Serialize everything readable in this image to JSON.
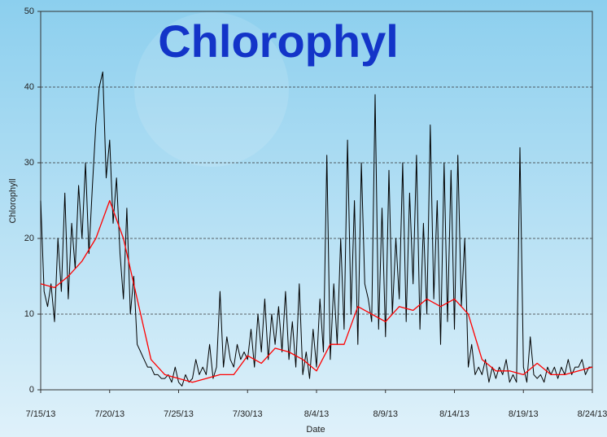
{
  "chart_data": {
    "type": "line",
    "title": "Chlorophyl",
    "x_label": "Date",
    "y_label": "Chlorophyll",
    "xlim": [
      "2013-07-15T00",
      "2013-08-24T00"
    ],
    "xticks": [
      {
        "value": "2013-07-15T00",
        "label": "7/15/13"
      },
      {
        "value": "2013-07-20T00",
        "label": "7/20/13"
      },
      {
        "value": "2013-07-25T00",
        "label": "7/25/13"
      },
      {
        "value": "2013-07-30T00",
        "label": "7/30/13"
      },
      {
        "value": "2013-08-04T00",
        "label": "8/4/13"
      },
      {
        "value": "2013-08-09T00",
        "label": "8/9/13"
      },
      {
        "value": "2013-08-14T00",
        "label": "8/14/13"
      },
      {
        "value": "2013-08-19T00",
        "label": "8/19/13"
      },
      {
        "value": "2013-08-24T00",
        "label": "8/24/13"
      }
    ],
    "ylim": [
      0,
      50
    ],
    "yticks": [
      0,
      10,
      20,
      30,
      40,
      50
    ],
    "grid": true,
    "series": [
      {
        "color": "#000000",
        "x": [
          "2013-07-15T00",
          "2013-07-15T06",
          "2013-07-15T12",
          "2013-07-15T18",
          "2013-07-16T00",
          "2013-07-16T06",
          "2013-07-16T12",
          "2013-07-16T18",
          "2013-07-17T00",
          "2013-07-17T06",
          "2013-07-17T12",
          "2013-07-17T18",
          "2013-07-18T00",
          "2013-07-18T06",
          "2013-07-18T12",
          "2013-07-18T18",
          "2013-07-19T00",
          "2013-07-19T06",
          "2013-07-19T12",
          "2013-07-19T18",
          "2013-07-20T00",
          "2013-07-20T06",
          "2013-07-20T12",
          "2013-07-20T18",
          "2013-07-21T00",
          "2013-07-21T06",
          "2013-07-21T12",
          "2013-07-21T18",
          "2013-07-22T00",
          "2013-07-22T06",
          "2013-07-22T12",
          "2013-07-22T18",
          "2013-07-23T00",
          "2013-07-23T06",
          "2013-07-23T12",
          "2013-07-23T18",
          "2013-07-24T00",
          "2013-07-24T06",
          "2013-07-24T12",
          "2013-07-24T18",
          "2013-07-25T00",
          "2013-07-25T06",
          "2013-07-25T12",
          "2013-07-25T18",
          "2013-07-26T00",
          "2013-07-26T06",
          "2013-07-26T12",
          "2013-07-26T18",
          "2013-07-27T00",
          "2013-07-27T06",
          "2013-07-27T12",
          "2013-07-27T18",
          "2013-07-28T00",
          "2013-07-28T06",
          "2013-07-28T12",
          "2013-07-28T18",
          "2013-07-29T00",
          "2013-07-29T06",
          "2013-07-29T12",
          "2013-07-29T18",
          "2013-07-30T00",
          "2013-07-30T06",
          "2013-07-30T12",
          "2013-07-30T18",
          "2013-07-31T00",
          "2013-07-31T06",
          "2013-07-31T12",
          "2013-07-31T18",
          "2013-08-01T00",
          "2013-08-01T06",
          "2013-08-01T12",
          "2013-08-01T18",
          "2013-08-02T00",
          "2013-08-02T06",
          "2013-08-02T12",
          "2013-08-02T18",
          "2013-08-03T00",
          "2013-08-03T06",
          "2013-08-03T12",
          "2013-08-03T18",
          "2013-08-04T00",
          "2013-08-04T06",
          "2013-08-04T12",
          "2013-08-04T18",
          "2013-08-05T00",
          "2013-08-05T06",
          "2013-08-05T12",
          "2013-08-05T18",
          "2013-08-06T00",
          "2013-08-06T06",
          "2013-08-06T12",
          "2013-08-06T18",
          "2013-08-07T00",
          "2013-08-07T06",
          "2013-08-07T12",
          "2013-08-07T18",
          "2013-08-08T00",
          "2013-08-08T06",
          "2013-08-08T12",
          "2013-08-08T18",
          "2013-08-09T00",
          "2013-08-09T06",
          "2013-08-09T12",
          "2013-08-09T18",
          "2013-08-10T00",
          "2013-08-10T06",
          "2013-08-10T12",
          "2013-08-10T18",
          "2013-08-11T00",
          "2013-08-11T06",
          "2013-08-11T12",
          "2013-08-11T18",
          "2013-08-12T00",
          "2013-08-12T06",
          "2013-08-12T12",
          "2013-08-12T18",
          "2013-08-13T00",
          "2013-08-13T06",
          "2013-08-13T12",
          "2013-08-13T18",
          "2013-08-14T00",
          "2013-08-14T06",
          "2013-08-14T12",
          "2013-08-14T18",
          "2013-08-15T00",
          "2013-08-15T06",
          "2013-08-15T12",
          "2013-08-15T18",
          "2013-08-16T00",
          "2013-08-16T06",
          "2013-08-16T12",
          "2013-08-16T18",
          "2013-08-17T00",
          "2013-08-17T06",
          "2013-08-17T12",
          "2013-08-17T18",
          "2013-08-18T00",
          "2013-08-18T06",
          "2013-08-18T12",
          "2013-08-18T18",
          "2013-08-19T00",
          "2013-08-19T06",
          "2013-08-19T12",
          "2013-08-19T18",
          "2013-08-20T00",
          "2013-08-20T06",
          "2013-08-20T12",
          "2013-08-20T18",
          "2013-08-21T00",
          "2013-08-21T06",
          "2013-08-21T12",
          "2013-08-21T18",
          "2013-08-22T00",
          "2013-08-22T06",
          "2013-08-22T12",
          "2013-08-22T18",
          "2013-08-23T00",
          "2013-08-23T06",
          "2013-08-23T12",
          "2013-08-23T18",
          "2013-08-24T00"
        ],
        "values": [
          25,
          13,
          11,
          14,
          9,
          20,
          13,
          26,
          12,
          22,
          16,
          27,
          20,
          30,
          18,
          27,
          35,
          40,
          42,
          28,
          33,
          22,
          28,
          18,
          12,
          24,
          10,
          15,
          6,
          5,
          4,
          3,
          3,
          2,
          2,
          1.5,
          1.5,
          2,
          1,
          3,
          1,
          0.5,
          2,
          1,
          1.5,
          4,
          2,
          3,
          2,
          6,
          1.5,
          3,
          13,
          3,
          7,
          4,
          3,
          6,
          4,
          5,
          4,
          8,
          3,
          10,
          5,
          12,
          4,
          10,
          6,
          11,
          5,
          13,
          4,
          9,
          3,
          14,
          2,
          5,
          1.5,
          8,
          3,
          12,
          5,
          31,
          4,
          14,
          6,
          20,
          8,
          33,
          10,
          25,
          6,
          30,
          14,
          12,
          9,
          39,
          8,
          24,
          7,
          29,
          10,
          20,
          12,
          30,
          9,
          26,
          14,
          31,
          8,
          22,
          10,
          35,
          12,
          25,
          6,
          30,
          9,
          29,
          8,
          31,
          11,
          20,
          3,
          6,
          2,
          3,
          2,
          4,
          1,
          3,
          1.5,
          3,
          2,
          4,
          1,
          2,
          1,
          32,
          3,
          1,
          7,
          2,
          1.5,
          2,
          1,
          3,
          2,
          3,
          1.5,
          3,
          2,
          4,
          2,
          3,
          3,
          4,
          2,
          3,
          3
        ]
      },
      {
        "color": "#ff0000",
        "x": [
          "2013-07-15T00",
          "2013-07-16T00",
          "2013-07-17T00",
          "2013-07-18T00",
          "2013-07-19T00",
          "2013-07-20T00",
          "2013-07-21T00",
          "2013-07-22T00",
          "2013-07-23T00",
          "2013-07-24T00",
          "2013-07-25T00",
          "2013-07-26T00",
          "2013-07-27T00",
          "2013-07-28T00",
          "2013-07-29T00",
          "2013-07-30T00",
          "2013-07-31T00",
          "2013-08-01T00",
          "2013-08-02T00",
          "2013-08-03T00",
          "2013-08-04T00",
          "2013-08-05T00",
          "2013-08-06T00",
          "2013-08-07T00",
          "2013-08-08T00",
          "2013-08-09T00",
          "2013-08-10T00",
          "2013-08-11T00",
          "2013-08-12T00",
          "2013-08-13T00",
          "2013-08-14T00",
          "2013-08-15T00",
          "2013-08-16T00",
          "2013-08-17T00",
          "2013-08-18T00",
          "2013-08-19T00",
          "2013-08-20T00",
          "2013-08-21T00",
          "2013-08-22T00",
          "2013-08-23T00",
          "2013-08-24T00"
        ],
        "values": [
          14,
          13.5,
          15,
          17,
          20,
          25,
          20,
          12,
          4,
          2,
          1.5,
          1,
          1.5,
          2,
          2,
          4.5,
          3.5,
          5.5,
          5,
          4,
          2.5,
          6,
          6,
          11,
          10,
          9,
          11,
          10.5,
          12,
          11,
          12,
          10,
          4,
          2.5,
          2.5,
          2,
          3.5,
          2,
          2,
          2.5,
          3
        ]
      }
    ]
  }
}
